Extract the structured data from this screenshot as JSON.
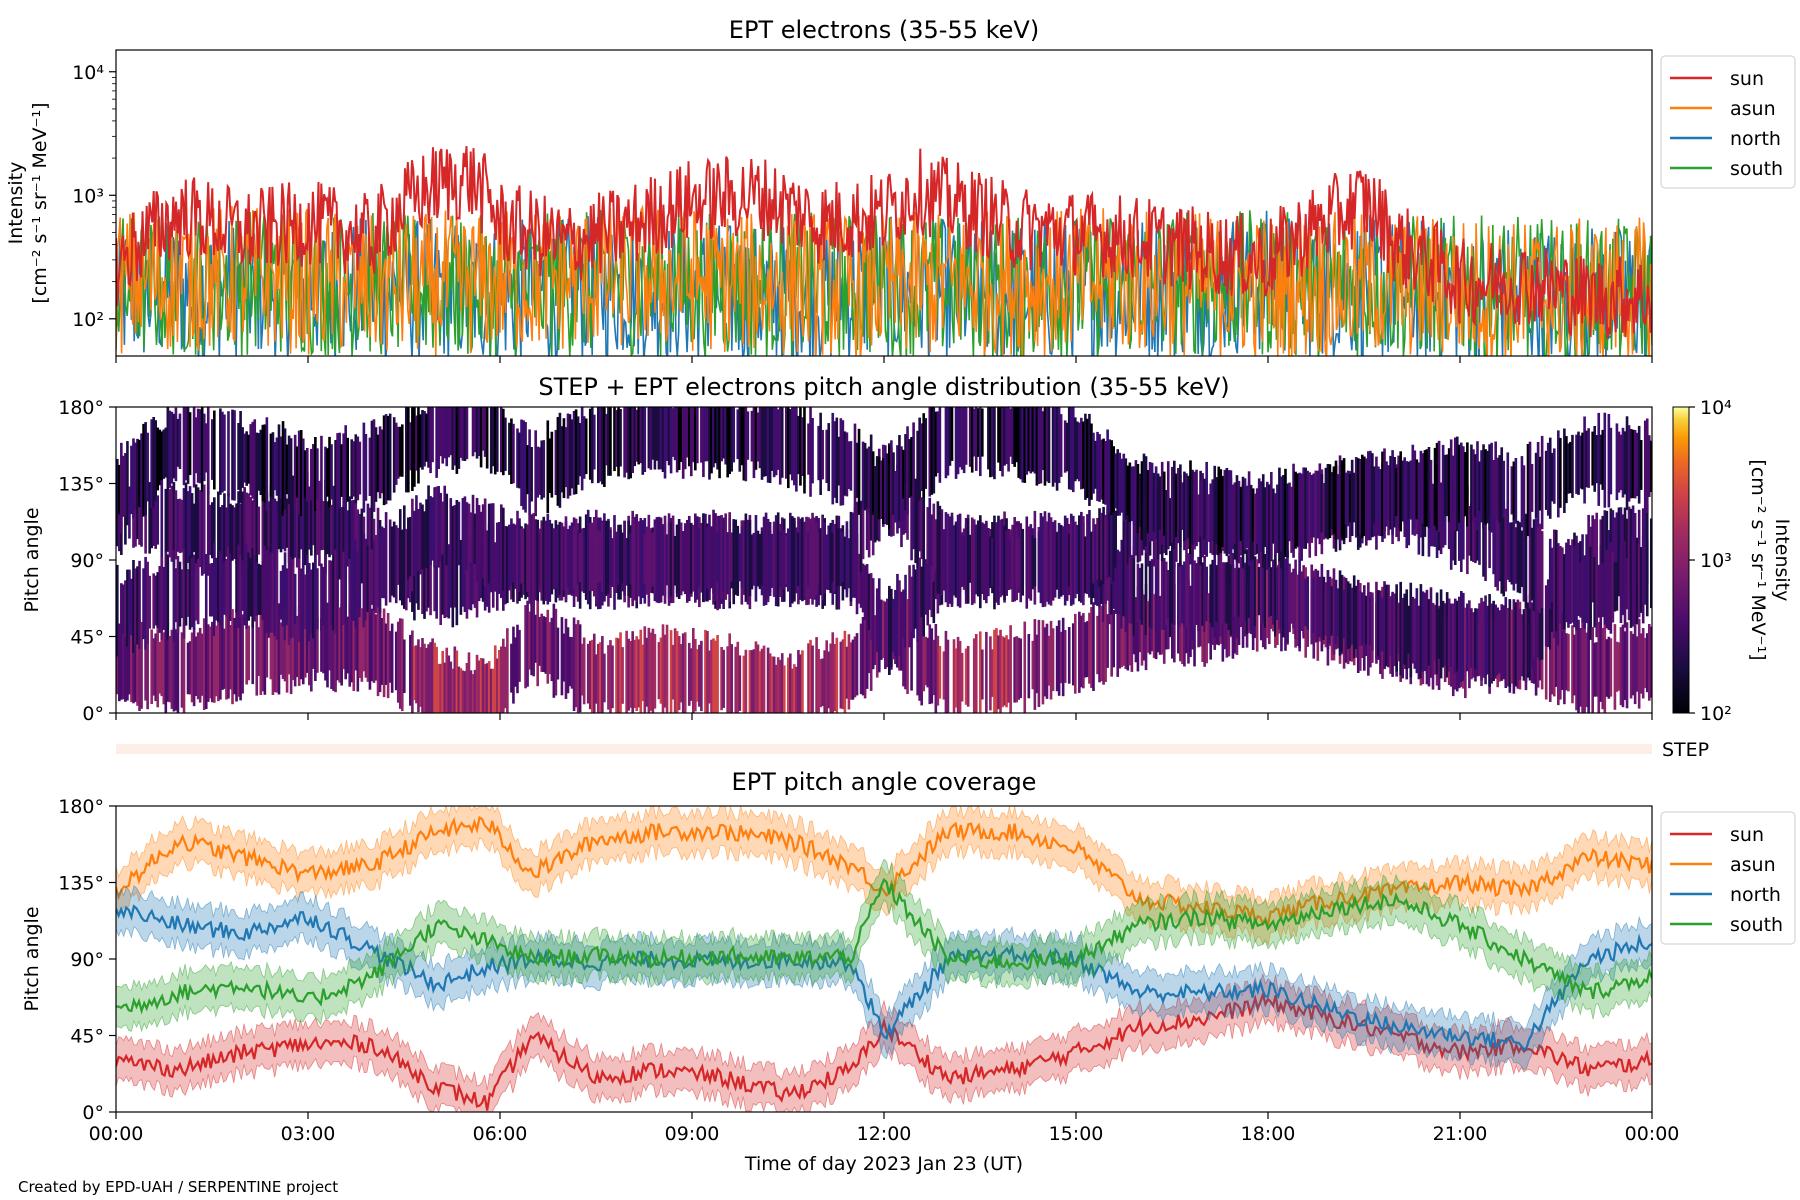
{
  "credit": "Created by EPD-UAH / SERPENTINE project",
  "colors": {
    "sun": "#d62728",
    "asun": "#ff7f0e",
    "north": "#1f77b4",
    "south": "#2ca02c"
  },
  "chart_data": [
    {
      "type": "line",
      "title": "EPT electrons (35-55 keV)",
      "ylabel_line1": "Intensity",
      "ylabel_line2": "[cm⁻² s⁻¹ sr⁻¹ MeV⁻¹]",
      "yscale": "log",
      "ylim": [
        50,
        15000
      ],
      "yticks": [
        100,
        1000,
        10000
      ],
      "ytick_labels": [
        "10²",
        "10³",
        "10⁴"
      ],
      "xlim_hours": [
        0,
        24
      ],
      "legend": {
        "placement": "upper-right-outside",
        "entries": [
          "sun",
          "asun",
          "north",
          "south"
        ]
      },
      "series_note_hourly_typical_values": true,
      "series": [
        {
          "name": "sun",
          "hours": [
            0,
            1,
            2,
            3,
            4,
            5,
            5.5,
            6,
            7,
            8,
            9,
            10,
            11,
            12,
            12.5,
            13,
            14,
            15,
            16,
            17,
            18,
            19,
            19.5,
            20,
            21,
            22,
            23,
            24
          ],
          "values": [
            250,
            700,
            500,
            600,
            450,
            1200,
            1400,
            600,
            400,
            550,
            900,
            1000,
            600,
            700,
            1100,
            900,
            550,
            500,
            450,
            350,
            300,
            650,
            900,
            400,
            200,
            200,
            150,
            150
          ]
        },
        {
          "name": "asun",
          "hours": [
            0,
            2,
            4,
            6,
            8,
            10,
            12,
            14,
            16,
            18,
            20,
            22,
            24
          ],
          "values": [
            200,
            220,
            180,
            200,
            220,
            200,
            180,
            200,
            200,
            180,
            190,
            160,
            170
          ]
        },
        {
          "name": "north",
          "hours": [
            0,
            2,
            4,
            6,
            8,
            10,
            12,
            14,
            16,
            18,
            20,
            22,
            24
          ],
          "values": [
            150,
            180,
            170,
            160,
            180,
            150,
            170,
            160,
            180,
            200,
            170,
            150,
            150
          ]
        },
        {
          "name": "south",
          "hours": [
            0,
            2,
            4,
            6,
            8,
            10,
            12,
            14,
            16,
            18,
            20,
            22,
            24
          ],
          "values": [
            180,
            200,
            190,
            170,
            200,
            180,
            190,
            170,
            200,
            190,
            180,
            170,
            160
          ]
        }
      ]
    },
    {
      "type": "heatmap",
      "title": "STEP + EPT electrons pitch angle distribution (35-55 keV)",
      "ylabel": "Pitch angle",
      "ylim": [
        0,
        180
      ],
      "yticks": [
        0,
        45,
        90,
        135,
        180
      ],
      "ytick_labels": [
        "0°",
        "45°",
        "90°",
        "135°",
        "180°"
      ],
      "xlim_hours": [
        0,
        24
      ],
      "colorbar": {
        "label_line1": "Intensity",
        "label_line2": "[cm⁻² s⁻¹ sr⁻¹ MeV⁻¹]",
        "scale": "log",
        "range": [
          100,
          10000
        ],
        "ticks": [
          100,
          1000,
          10000
        ],
        "tick_labels": [
          "10²",
          "10³",
          "10⁴"
        ],
        "colormap": "inferno"
      }
    },
    {
      "type": "strip",
      "label": "STEP"
    },
    {
      "type": "area",
      "title": "EPT pitch angle coverage",
      "ylabel": "Pitch angle",
      "ylim": [
        0,
        180
      ],
      "yticks": [
        0,
        45,
        90,
        135,
        180
      ],
      "ytick_labels": [
        "0°",
        "45°",
        "90°",
        "135°",
        "180°"
      ],
      "xlim_hours": [
        0,
        24
      ],
      "xticks_hours": [
        0,
        3,
        6,
        9,
        12,
        15,
        18,
        21,
        24
      ],
      "xtick_labels": [
        "00:00",
        "03:00",
        "06:00",
        "09:00",
        "12:00",
        "15:00",
        "18:00",
        "21:00",
        "00:00"
      ],
      "xlabel": "Time of day 2023 Jan 23 (UT)",
      "legend": {
        "placement": "upper-right-outside",
        "entries": [
          "sun",
          "asun",
          "north",
          "south"
        ]
      },
      "band_halfwidth_deg": 12,
      "series": [
        {
          "name": "sun",
          "hours": [
            0,
            1,
            2,
            3,
            4,
            5,
            5.8,
            6.5,
            7.5,
            8.5,
            9.5,
            10.5,
            11.5,
            12,
            13,
            14,
            15,
            16,
            17,
            18,
            19,
            20,
            21,
            22,
            23,
            24
          ],
          "values": [
            30,
            25,
            35,
            40,
            40,
            15,
            5,
            45,
            20,
            25,
            20,
            10,
            25,
            50,
            20,
            25,
            35,
            50,
            55,
            65,
            55,
            45,
            35,
            40,
            25,
            30
          ]
        },
        {
          "name": "asun",
          "hours": [
            0,
            1,
            2,
            3,
            4,
            5,
            5.8,
            6.5,
            7.5,
            8.5,
            9.5,
            10.5,
            11.5,
            12,
            13,
            14,
            15,
            16,
            17,
            18,
            19,
            20,
            21,
            22,
            23,
            24
          ],
          "values": [
            130,
            160,
            150,
            140,
            145,
            165,
            170,
            140,
            160,
            165,
            165,
            160,
            145,
            130,
            165,
            165,
            155,
            125,
            120,
            115,
            125,
            130,
            135,
            130,
            150,
            145
          ]
        },
        {
          "name": "north",
          "hours": [
            0,
            1,
            2,
            3,
            4,
            5,
            5.8,
            6.5,
            7.5,
            8.5,
            9.5,
            10.5,
            11.5,
            12,
            13,
            14,
            15,
            16,
            17,
            18,
            19,
            20,
            21,
            22,
            23,
            24
          ],
          "values": [
            120,
            110,
            105,
            115,
            95,
            75,
            85,
            90,
            88,
            90,
            88,
            90,
            88,
            45,
            90,
            92,
            90,
            70,
            70,
            72,
            60,
            50,
            45,
            40,
            90,
            100
          ]
        },
        {
          "name": "south",
          "hours": [
            0,
            1,
            2,
            3,
            4,
            5,
            5.8,
            6.5,
            7.5,
            8.5,
            9.5,
            10.5,
            11.5,
            12,
            13,
            14,
            15,
            16,
            17,
            18,
            19,
            20,
            21,
            22,
            23,
            24
          ],
          "values": [
            60,
            70,
            75,
            65,
            80,
            110,
            100,
            90,
            92,
            90,
            92,
            90,
            92,
            135,
            90,
            88,
            90,
            110,
            115,
            110,
            120,
            125,
            110,
            90,
            70,
            80
          ]
        }
      ]
    }
  ]
}
